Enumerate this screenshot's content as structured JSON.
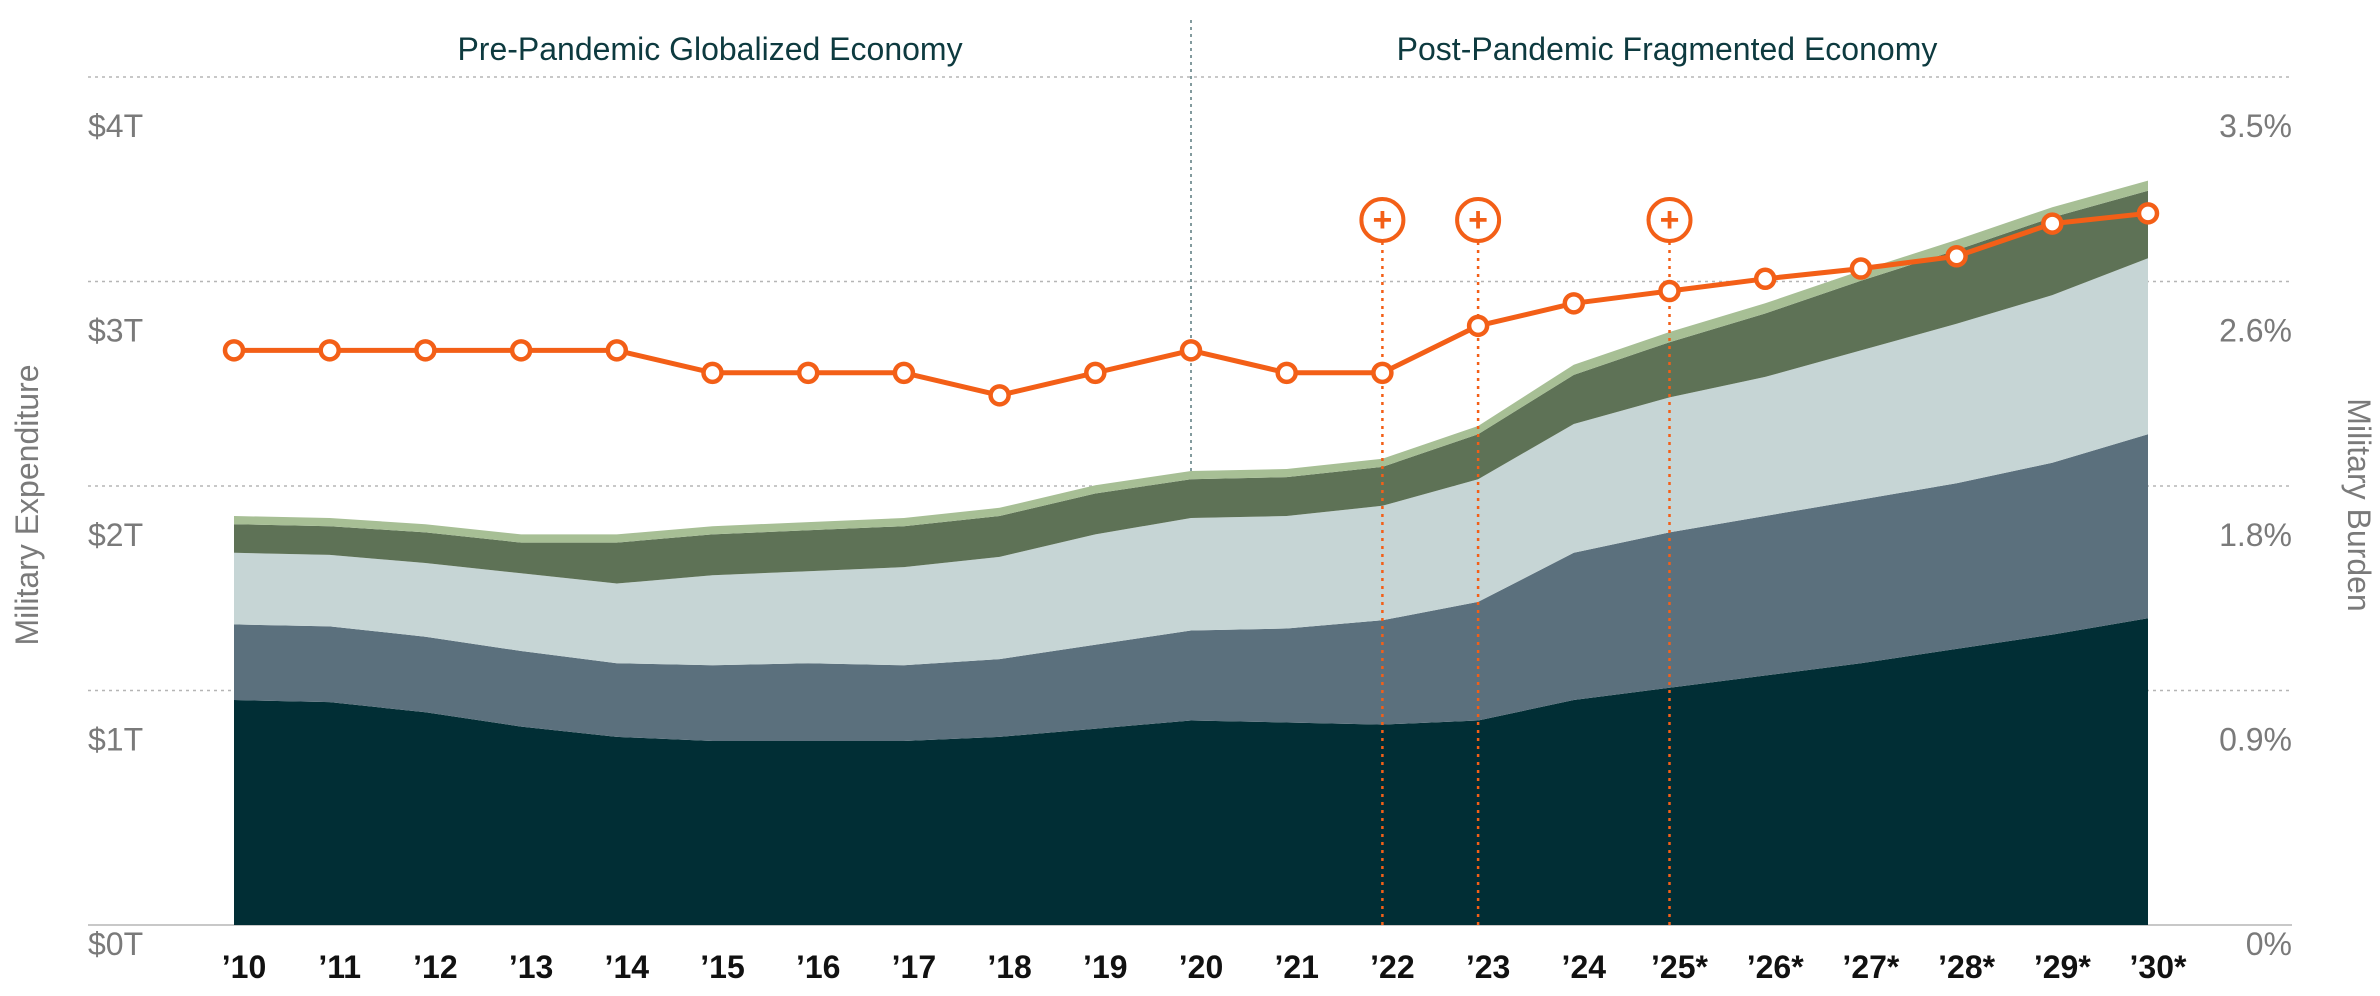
{
  "chart_data": {
    "type": "area",
    "x": [
      "’10",
      "’11",
      "’12",
      "’13",
      "’14",
      "’15",
      "’16",
      "’17",
      "’18",
      "’19",
      "’20",
      "’21",
      "’22",
      "’23",
      "’24",
      "’25*",
      "’26*",
      "’27*",
      "’28*",
      "’29*",
      "’30*"
    ],
    "left_axis": {
      "title": "Military Expenditure",
      "ticks": [
        "$0T",
        "$1T",
        "$2T",
        "$3T",
        "$4T"
      ],
      "tick_values": [
        0,
        1,
        2,
        3,
        4
      ],
      "ylim": [
        0,
        4.4
      ]
    },
    "right_axis": {
      "title": "Military Burden",
      "ticks": [
        "0%",
        "0.9%",
        "1.8%",
        "2.6%",
        "3.5%"
      ],
      "tick_values": [
        0,
        1,
        2,
        3,
        4
      ]
    },
    "regions": [
      {
        "label": "Pre-Pandemic Globalized Economy"
      },
      {
        "label": "Post-Pandemic Fragmented Economy"
      }
    ],
    "region_divider_at": "’20",
    "stacked_series": [
      {
        "color": "#012e35",
        "values": [
          1.1,
          1.09,
          1.04,
          0.97,
          0.92,
          0.9,
          0.9,
          0.9,
          0.92,
          0.96,
          1.0,
          0.99,
          0.98,
          1.0,
          1.1,
          1.16,
          1.22,
          1.28,
          1.35,
          1.42,
          1.5
        ]
      },
      {
        "color": "#5b707d",
        "values": [
          0.37,
          0.37,
          0.37,
          0.37,
          0.36,
          0.37,
          0.38,
          0.37,
          0.38,
          0.41,
          0.44,
          0.46,
          0.51,
          0.58,
          0.72,
          0.76,
          0.78,
          0.8,
          0.81,
          0.84,
          0.9
        ]
      },
      {
        "color": "#c6d5d5",
        "values": [
          0.35,
          0.35,
          0.36,
          0.38,
          0.39,
          0.44,
          0.45,
          0.48,
          0.5,
          0.54,
          0.55,
          0.55,
          0.56,
          0.6,
          0.63,
          0.66,
          0.68,
          0.73,
          0.78,
          0.82,
          0.86
        ]
      },
      {
        "color": "#5e7256",
        "values": [
          0.14,
          0.14,
          0.15,
          0.15,
          0.2,
          0.2,
          0.2,
          0.2,
          0.2,
          0.2,
          0.19,
          0.19,
          0.19,
          0.22,
          0.24,
          0.27,
          0.31,
          0.34,
          0.36,
          0.38,
          0.33
        ]
      },
      {
        "color": "#a7bf95",
        "values": [
          0.04,
          0.04,
          0.04,
          0.04,
          0.04,
          0.04,
          0.04,
          0.04,
          0.04,
          0.04,
          0.04,
          0.04,
          0.04,
          0.04,
          0.05,
          0.05,
          0.05,
          0.05,
          0.05,
          0.05,
          0.05
        ]
      }
    ],
    "burden_line": {
      "color": "#f35f17",
      "right_axis_tick_index_scale": true,
      "values": [
        2.81,
        2.81,
        2.81,
        2.81,
        2.81,
        2.7,
        2.7,
        2.7,
        2.59,
        2.7,
        2.81,
        2.7,
        2.7,
        2.93,
        3.04,
        3.1,
        3.16,
        3.21,
        3.27,
        3.43,
        3.48
      ]
    },
    "event_markers": {
      "color": "#f35f17",
      "symbol": "+",
      "at": [
        "’22",
        "’23",
        "’25*"
      ]
    },
    "grid": true
  }
}
